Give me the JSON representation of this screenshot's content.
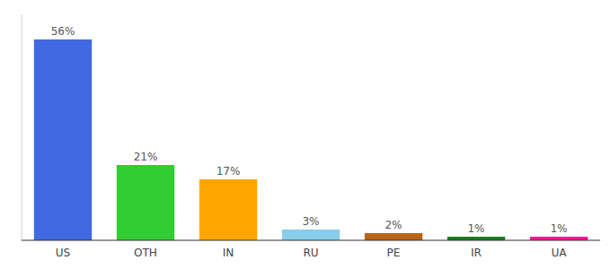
{
  "chart_data": {
    "type": "bar",
    "categories": [
      "US",
      "OTH",
      "IN",
      "RU",
      "PE",
      "IR",
      "UA"
    ],
    "values": [
      56,
      21,
      17,
      3,
      2,
      1,
      1
    ],
    "value_labels": [
      "56%",
      "21%",
      "17%",
      "3%",
      "2%",
      "1%",
      "1%"
    ],
    "colors": [
      "#4169e1",
      "#33cc33",
      "#ffa500",
      "#87ceeb",
      "#b8651a",
      "#1e7a1e",
      "#ff1493"
    ],
    "ylim": [
      0,
      63
    ],
    "data_labels": true,
    "tick_labels": "x",
    "grid": false
  }
}
